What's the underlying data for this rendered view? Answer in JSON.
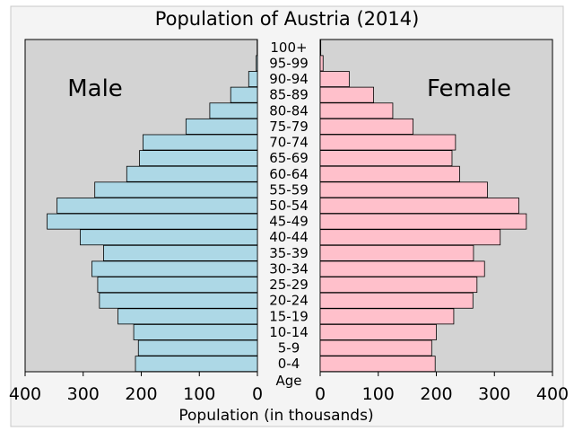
{
  "chart_data": {
    "type": "bar",
    "subtype": "population-pyramid",
    "title": "Population of Austria (2014)",
    "xlabel": "Population (in thousands)",
    "age_label": "Age",
    "xlim": [
      0,
      400
    ],
    "xticks": [
      400,
      300,
      200,
      100,
      0
    ],
    "grid": false,
    "colors": {
      "male": "#add8e6",
      "female": "#ffc0cb",
      "plot_bg": "#d3d3d3",
      "figure_bg": "#f4f4f4",
      "outline": "#000000"
    },
    "categories": [
      "0-4",
      "5-9",
      "10-14",
      "15-19",
      "20-24",
      "25-29",
      "30-34",
      "35-39",
      "40-44",
      "45-49",
      "50-54",
      "55-59",
      "60-64",
      "65-69",
      "70-74",
      "75-79",
      "80-84",
      "85-89",
      "90-94",
      "95-99",
      "100+"
    ],
    "series": [
      {
        "name": "Male",
        "values": [
          210,
          205,
          213,
          240,
          272,
          275,
          285,
          265,
          305,
          362,
          345,
          280,
          225,
          203,
          197,
          123,
          82,
          46,
          15,
          2,
          0.5
        ]
      },
      {
        "name": "Female",
        "values": [
          198,
          192,
          200,
          230,
          263,
          270,
          283,
          264,
          310,
          355,
          342,
          288,
          240,
          227,
          233,
          160,
          125,
          92,
          50,
          5,
          1
        ]
      }
    ]
  }
}
